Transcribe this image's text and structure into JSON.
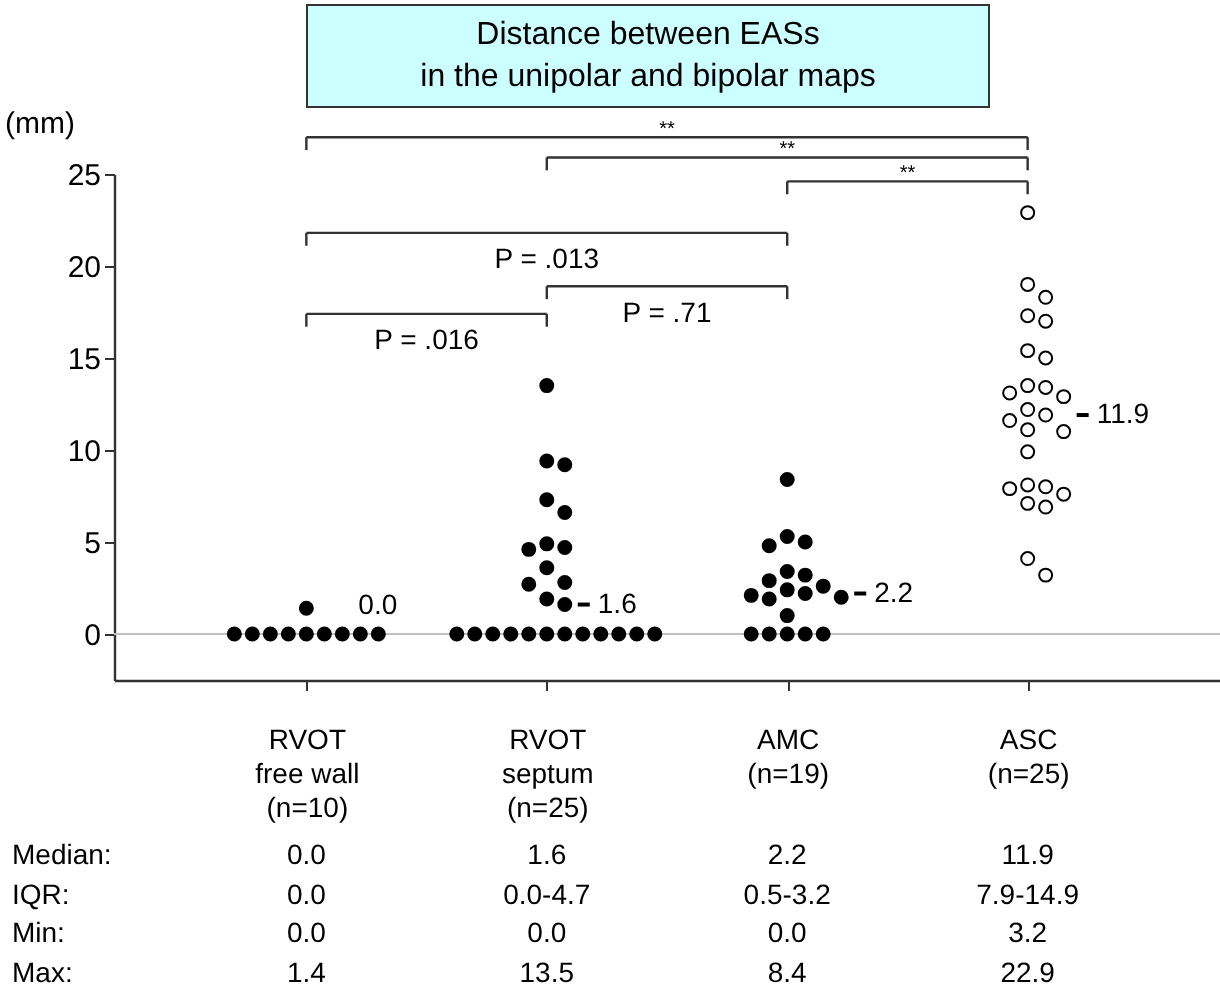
{
  "chart_data": {
    "type": "scatter",
    "title": "Distance between EASs\nin the unipolar and bipolar maps",
    "ylabel": "(mm)",
    "categories": [
      "RVOT\nfree wall\n(n=10)",
      "RVOT\nseptum\n(n=25)",
      "AMC\n(n=19)",
      "ASC\n(n=25)"
    ],
    "series": [
      {
        "color": "#000000",
        "x": [
          "RVOT\nfree wall\n(n=10)",
          "RVOT\nfree wall\n(n=10)",
          "RVOT\nfree wall\n(n=10)",
          "RVOT\nfree wall\n(n=10)",
          "RVOT\nfree wall\n(n=10)",
          "RVOT\nfree wall\n(n=10)",
          "RVOT\nfree wall\n(n=10)",
          "RVOT\nfree wall\n(n=10)",
          "RVOT\nfree wall\n(n=10)",
          "RVOT\nfree wall\n(n=10)"
        ],
        "values": [
          0,
          0,
          0,
          0,
          0,
          0,
          0,
          0,
          0,
          1.4
        ]
      },
      {
        "color": "#000000",
        "x": [
          "RVOT\nseptum\n(n=25)",
          "RVOT\nseptum\n(n=25)",
          "RVOT\nseptum\n(n=25)",
          "RVOT\nseptum\n(n=25)",
          "RVOT\nseptum\n(n=25)",
          "RVOT\nseptum\n(n=25)",
          "RVOT\nseptum\n(n=25)",
          "RVOT\nseptum\n(n=25)",
          "RVOT\nseptum\n(n=25)",
          "RVOT\nseptum\n(n=25)",
          "RVOT\nseptum\n(n=25)",
          "RVOT\nseptum\n(n=25)",
          "RVOT\nseptum\n(n=25)",
          "RVOT\nseptum\n(n=25)",
          "RVOT\nseptum\n(n=25)",
          "RVOT\nseptum\n(n=25)",
          "RVOT\nseptum\n(n=25)",
          "RVOT\nseptum\n(n=25)",
          "RVOT\nseptum\n(n=25)",
          "RVOT\nseptum\n(n=25)",
          "RVOT\nseptum\n(n=25)",
          "RVOT\nseptum\n(n=25)",
          "RVOT\nseptum\n(n=25)",
          "RVOT\nseptum\n(n=25)",
          "RVOT\nseptum\n(n=25)"
        ],
        "values": [
          0,
          0,
          0,
          0,
          0,
          0,
          0,
          0,
          0,
          0,
          0,
          0,
          1.6,
          1.9,
          2.7,
          2.8,
          3.6,
          4.6,
          4.7,
          4.9,
          6.6,
          7.3,
          9.2,
          9.4,
          13.5
        ]
      },
      {
        "color": "#000000",
        "x": [
          "AMC\n(n=19)",
          "AMC\n(n=19)",
          "AMC\n(n=19)",
          "AMC\n(n=19)",
          "AMC\n(n=19)",
          "AMC\n(n=19)",
          "AMC\n(n=19)",
          "AMC\n(n=19)",
          "AMC\n(n=19)",
          "AMC\n(n=19)",
          "AMC\n(n=19)",
          "AMC\n(n=19)",
          "AMC\n(n=19)",
          "AMC\n(n=19)",
          "AMC\n(n=19)",
          "AMC\n(n=19)",
          "AMC\n(n=19)",
          "AMC\n(n=19)",
          "AMC\n(n=19)"
        ],
        "values": [
          0,
          0,
          0,
          0,
          0,
          1.0,
          1.9,
          2.0,
          2.1,
          2.2,
          2.4,
          2.6,
          2.9,
          3.2,
          3.4,
          4.8,
          5.0,
          5.3,
          8.4
        ]
      },
      {
        "color": "#ffffff",
        "x": [
          "ASC\n(n=25)",
          "ASC\n(n=25)",
          "ASC\n(n=25)",
          "ASC\n(n=25)",
          "ASC\n(n=25)",
          "ASC\n(n=25)",
          "ASC\n(n=25)",
          "ASC\n(n=25)",
          "ASC\n(n=25)",
          "ASC\n(n=25)",
          "ASC\n(n=25)",
          "ASC\n(n=25)",
          "ASC\n(n=25)",
          "ASC\n(n=25)",
          "ASC\n(n=25)",
          "ASC\n(n=25)",
          "ASC\n(n=25)",
          "ASC\n(n=25)",
          "ASC\n(n=25)",
          "ASC\n(n=25)",
          "ASC\n(n=25)",
          "ASC\n(n=25)",
          "ASC\n(n=25)",
          "ASC\n(n=25)",
          "ASC\n(n=25)"
        ],
        "values": [
          3.2,
          4.1,
          6.9,
          7.1,
          7.6,
          7.9,
          8.0,
          8.1,
          9.9,
          11.0,
          11.1,
          11.6,
          11.9,
          12.2,
          12.9,
          13.1,
          13.4,
          13.5,
          15.0,
          15.4,
          17.0,
          17.3,
          18.3,
          19.0,
          22.9
        ]
      }
    ],
    "ylim": [
      -2.5,
      25
    ],
    "yticks": [
      0,
      5,
      10,
      15,
      20,
      25
    ],
    "grid": false,
    "ref_lines": [
      {
        "axis": "y",
        "value": 0,
        "color": "#c0c0c0"
      }
    ],
    "annotations": [
      "**",
      "**",
      "**",
      "P = .013",
      "P = .016",
      "P = .71",
      "0.0",
      "1.6",
      "2.2",
      "11.9",
      "Median:",
      "0.0",
      "1.6",
      "2.2",
      "11.9",
      "IQR:",
      "0.0",
      "0.0-4.7",
      "0.5-3.2",
      "7.9-14.9",
      "Min:",
      "0.0",
      "0.0",
      "0.0",
      "3.2",
      "Max:",
      "1.4",
      "13.5",
      "8.4",
      "22.9"
    ]
  }
}
